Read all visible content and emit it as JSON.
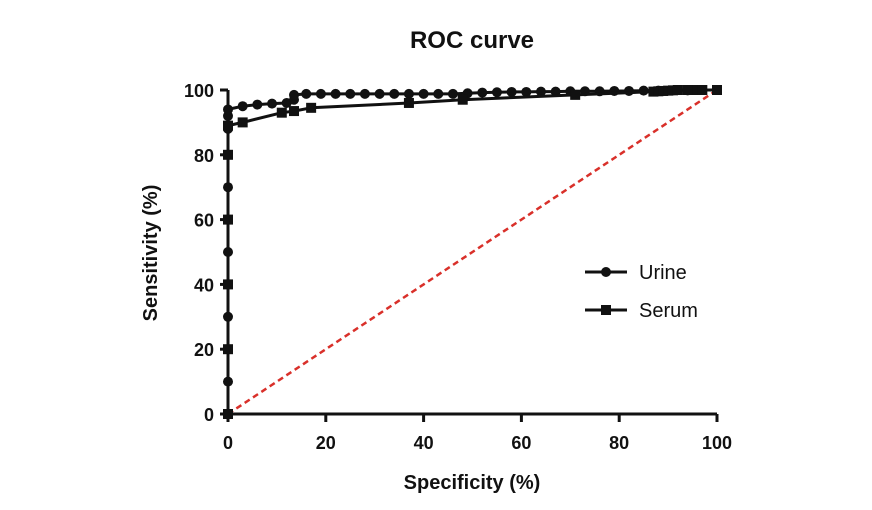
{
  "chart_data": {
    "type": "line",
    "title": "ROC curve",
    "xlabel": "Specificity (%)",
    "ylabel": "Sensitivity (%)",
    "xlim": [
      0,
      100
    ],
    "ylim": [
      0,
      100
    ],
    "xticks": [
      "0",
      "20",
      "40",
      "60",
      "80",
      "100"
    ],
    "yticks": [
      "0",
      "20",
      "40",
      "60",
      "80",
      "100"
    ],
    "grid": false,
    "legend_position": "right-middle",
    "series": [
      {
        "name": "Urine",
        "marker": "circle",
        "color": "#111111",
        "points": [
          [
            0,
            0
          ],
          [
            0,
            10
          ],
          [
            0,
            20
          ],
          [
            0,
            30
          ],
          [
            0,
            40
          ],
          [
            0,
            50
          ],
          [
            0,
            60
          ],
          [
            0,
            70
          ],
          [
            0,
            80
          ],
          [
            0,
            88
          ],
          [
            0,
            92
          ],
          [
            0,
            94
          ],
          [
            3,
            95
          ],
          [
            6,
            95.5
          ],
          [
            9,
            95.8
          ],
          [
            12,
            96
          ],
          [
            13.5,
            97
          ],
          [
            13.5,
            98.5
          ],
          [
            16,
            98.8
          ],
          [
            19,
            98.8
          ],
          [
            22,
            98.8
          ],
          [
            25,
            98.8
          ],
          [
            28,
            98.8
          ],
          [
            31,
            98.8
          ],
          [
            34,
            98.8
          ],
          [
            37,
            98.8
          ],
          [
            40,
            98.8
          ],
          [
            43,
            98.8
          ],
          [
            46,
            98.8
          ],
          [
            49,
            99
          ],
          [
            52,
            99.2
          ],
          [
            55,
            99.3
          ],
          [
            58,
            99.4
          ],
          [
            61,
            99.4
          ],
          [
            64,
            99.5
          ],
          [
            67,
            99.5
          ],
          [
            70,
            99.6
          ],
          [
            73,
            99.6
          ],
          [
            76,
            99.6
          ],
          [
            79,
            99.7
          ],
          [
            82,
            99.7
          ],
          [
            85,
            99.8
          ],
          [
            88,
            99.8
          ],
          [
            91,
            99.9
          ],
          [
            94,
            99.9
          ],
          [
            97,
            100
          ],
          [
            100,
            100
          ]
        ]
      },
      {
        "name": "Serum",
        "marker": "square",
        "color": "#111111",
        "points": [
          [
            0,
            0
          ],
          [
            0,
            20
          ],
          [
            0,
            40
          ],
          [
            0,
            60
          ],
          [
            0,
            80
          ],
          [
            0,
            89
          ],
          [
            3,
            90
          ],
          [
            11,
            93
          ],
          [
            13.5,
            93.5
          ],
          [
            17,
            94.5
          ],
          [
            37,
            96
          ],
          [
            48,
            97
          ],
          [
            71,
            98.5
          ],
          [
            87,
            99.5
          ],
          [
            88,
            99.6
          ],
          [
            89,
            99.7
          ],
          [
            90,
            99.8
          ],
          [
            91,
            99.9
          ],
          [
            92,
            100
          ],
          [
            94,
            100
          ],
          [
            96,
            100
          ],
          [
            97,
            100
          ],
          [
            100,
            100
          ]
        ]
      }
    ],
    "reference_line": {
      "points": [
        [
          0,
          0
        ],
        [
          100,
          100
        ]
      ],
      "color": "#d9302a",
      "style": "dashed"
    }
  }
}
